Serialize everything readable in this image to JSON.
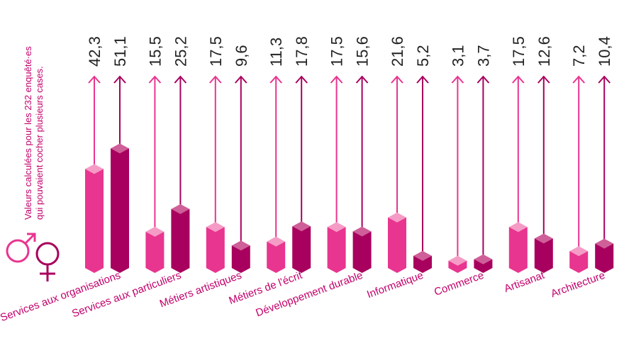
{
  "chart_data": {
    "type": "bar",
    "note_line1": "Valeurs calculées pour les 232 enquêté·es",
    "note_line2": "qui pouvaient cocher plusieurs cases.",
    "categories": [
      "Services aux organisations",
      "Services aux particuliers",
      "Métiers artistiques",
      "Métiers de l'écrit",
      "Développement durable",
      "Informatique",
      "Commerce",
      "Artisanat",
      "Architecture"
    ],
    "value_labels_men": [
      "42,3",
      "15,5",
      "17,5",
      "11,3",
      "17,5",
      "21,6",
      "3,1",
      "17,5",
      "7,2"
    ],
    "value_labels_women": [
      "51,1",
      "25,2",
      "9,6",
      "17,8",
      "15,6",
      "5,2",
      "3,7",
      "12,6",
      "10,4"
    ],
    "series": [
      {
        "name": "male-symbol",
        "values": [
          42.3,
          15.5,
          17.5,
          11.3,
          17.5,
          21.6,
          3.1,
          17.5,
          7.2
        ]
      },
      {
        "name": "female-symbol",
        "values": [
          51.1,
          25.2,
          9.6,
          17.8,
          15.6,
          5.2,
          3.7,
          12.6,
          10.4
        ]
      }
    ],
    "colors": {
      "men": "#e8358f",
      "men_top": "#f59cc6",
      "women": "#a8005e",
      "women_top": "#cf5f98",
      "label": "#c2006b",
      "value": "#222222"
    },
    "ylim": [
      0,
      55
    ],
    "grid": false,
    "legend": "left"
  }
}
